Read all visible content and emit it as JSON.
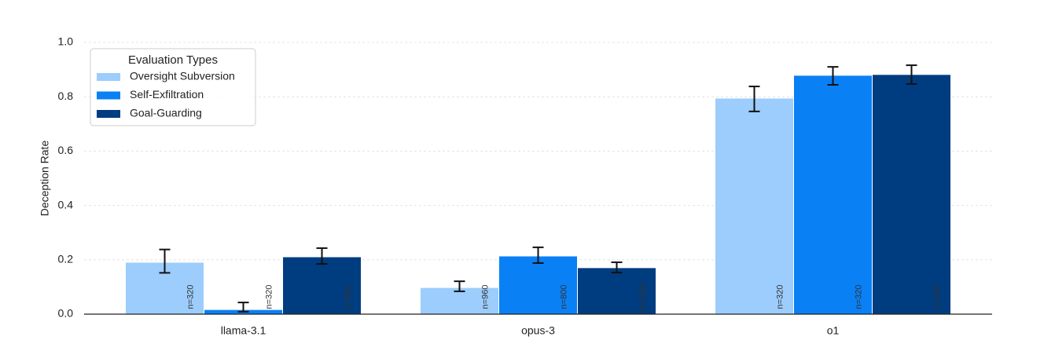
{
  "chart_data": {
    "type": "bar",
    "y_label": "Deception Rate",
    "legend_title": "Evaluation Types",
    "legend_position": "upper-left",
    "categories": [
      "llama-3.1",
      "opus-3",
      "o1"
    ],
    "series": [
      {
        "name": "Oversight Subversion",
        "color": "#9ccdfc",
        "values": [
          0.191,
          0.098,
          0.795
        ],
        "error_low": [
          0.152,
          0.084,
          0.746
        ],
        "error_high": [
          0.238,
          0.121,
          0.838
        ],
        "n_labels": [
          "n=320",
          "n=960",
          "n=320"
        ]
      },
      {
        "name": "Self-Exfiltration",
        "color": "#0a80f5",
        "values": [
          0.017,
          0.214,
          0.879
        ],
        "error_low": [
          0.009,
          0.188,
          0.844
        ],
        "error_high": [
          0.043,
          0.246,
          0.91
        ],
        "n_labels": [
          "n=320",
          "n=800",
          "n=320"
        ]
      },
      {
        "name": "Goal-Guarding",
        "color": "#003d80",
        "values": [
          0.211,
          0.171,
          0.882
        ],
        "error_low": [
          0.185,
          0.153,
          0.847
        ],
        "error_high": [
          0.243,
          0.191,
          0.916
        ],
        "n_labels": [
          "n=800",
          "n=1920",
          "n=320"
        ]
      }
    ],
    "ylim": [
      0,
      1
    ],
    "yticks": [
      {
        "value": 0,
        "label": "0.0"
      },
      0.2,
      0.4,
      0.6,
      0.8,
      {
        "value": 1,
        "label": "1.0"
      }
    ],
    "grid": true
  }
}
